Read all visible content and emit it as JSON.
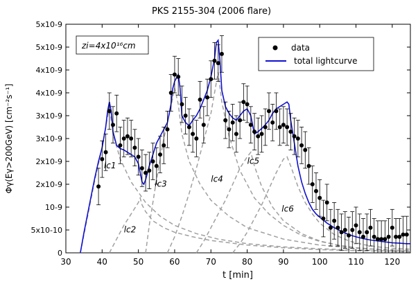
{
  "chart_data": {
    "type": "scatter",
    "title": "PKS 2155-304  (2006 flare)",
    "xlabel": "t [min]",
    "ylabel": "Φγ(Eγ>200GeV) [cm⁻²s⁻¹]",
    "xlim": [
      30,
      125
    ],
    "ylim": [
      0,
      5e-09
    ],
    "x_ticks": [
      30,
      40,
      50,
      60,
      70,
      80,
      90,
      100,
      110,
      120
    ],
    "y_ticks": [
      {
        "value": 0,
        "label": "0"
      },
      {
        "value": 5e-10,
        "label": "5x10-10"
      },
      {
        "value": 1e-09,
        "label": "10-9"
      },
      {
        "value": 1.5e-09,
        "label": "2x10-9"
      },
      {
        "value": 2e-09,
        "label": "2x10-9"
      },
      {
        "value": 2.5e-09,
        "label": "3x10-9"
      },
      {
        "value": 3e-09,
        "label": "3x10-9"
      },
      {
        "value": 3.5e-09,
        "label": "4x10-9"
      },
      {
        "value": 4e-09,
        "label": "4x10-9"
      },
      {
        "value": 4.5e-09,
        "label": "5x10-9"
      },
      {
        "value": 5e-09,
        "label": "5x10-9"
      }
    ],
    "grid": false,
    "legend_position": "top-right",
    "annotation_box": "zi=4x10¹⁶cm",
    "colors": {
      "data": "#000000",
      "total": "#1010d0",
      "components": "#a0a0a0"
    },
    "series": [
      {
        "name": "data",
        "kind": "points",
        "x": [
          39,
          40,
          41,
          42,
          43,
          44,
          45,
          46,
          47,
          48,
          49,
          50,
          51,
          52,
          53,
          54,
          55,
          56,
          57,
          58,
          59,
          60,
          61,
          62,
          63,
          64,
          65,
          66,
          67,
          68,
          69,
          70,
          71,
          72,
          73,
          74,
          75,
          76,
          77,
          78,
          79,
          80,
          81,
          82,
          83,
          84,
          85,
          86,
          87,
          88,
          89,
          90,
          91,
          92,
          93,
          94,
          95,
          96,
          97,
          98,
          99,
          100,
          101,
          102,
          103,
          104,
          105,
          106,
          107,
          108,
          109,
          110,
          111,
          112,
          113,
          114,
          115,
          116,
          117,
          118,
          119,
          120,
          121,
          122,
          123,
          124
        ],
        "y": [
          1.45e-09,
          2.05e-09,
          2.2e-09,
          3.1e-09,
          2.8e-09,
          3.05e-09,
          2.35e-09,
          2.5e-09,
          2.55e-09,
          2.5e-09,
          2.3e-09,
          2.1e-09,
          1.85e-09,
          1.75e-09,
          1.8e-09,
          2e-09,
          1.9e-09,
          2.15e-09,
          2.35e-09,
          2.7e-09,
          3.5e-09,
          3.9e-09,
          3.85e-09,
          3.25e-09,
          3e-09,
          2.75e-09,
          2.6e-09,
          2.5e-09,
          3.35e-09,
          2.8e-09,
          3.4e-09,
          3.8e-09,
          4.2e-09,
          4.15e-09,
          4.35e-09,
          2.9e-09,
          2.7e-09,
          2.85e-09,
          2.6e-09,
          2.9e-09,
          3.3e-09,
          3.25e-09,
          2.8e-09,
          2.65e-09,
          2.55e-09,
          2.6e-09,
          2.75e-09,
          3.1e-09,
          2.85e-09,
          3.1e-09,
          2.75e-09,
          2.8e-09,
          2.75e-09,
          2.65e-09,
          2.55e-09,
          2.5e-09,
          2.35e-09,
          2.25e-09,
          1.9e-09,
          1.5e-09,
          1.35e-09,
          1.2e-09,
          7.5e-10,
          1.1e-09,
          5.5e-10,
          7e-10,
          5.5e-10,
          4.5e-10,
          5e-10,
          3.8e-10,
          5e-10,
          6e-10,
          4.5e-10,
          3.5e-10,
          4.5e-10,
          5.5e-10,
          3.5e-10,
          3e-10,
          3e-10,
          3e-10,
          3.5e-10,
          5.5e-10,
          3.5e-10,
          3.5e-10,
          4e-10,
          4e-10
        ],
        "error": 4e-10
      },
      {
        "name": "total lightcurve",
        "kind": "line",
        "x": [
          34,
          35,
          36,
          37,
          38,
          39,
          40,
          41,
          41.5,
          42,
          42.5,
          43,
          44,
          45,
          46,
          47,
          48,
          49,
          50,
          51,
          51.5,
          52,
          53,
          54,
          55,
          56,
          57,
          58,
          59,
          59.5,
          60,
          61,
          61.5,
          62,
          63,
          64,
          65,
          66,
          67,
          68,
          69,
          70,
          71,
          71.5,
          72,
          72.5,
          73,
          74,
          75,
          76,
          77,
          78,
          79,
          80,
          81,
          81.5,
          82,
          83,
          84,
          85,
          86,
          87,
          88,
          89,
          90,
          91,
          91.5,
          92,
          93,
          94,
          95,
          96,
          97,
          98,
          99,
          100,
          102,
          104,
          106,
          108,
          110,
          112,
          114,
          116,
          118,
          120,
          122,
          124,
          125
        ],
        "y": [
          0.0,
          4.5e-10,
          8.5e-10,
          1.25e-09,
          1.65e-09,
          2e-09,
          2.3e-09,
          2.75e-09,
          3.1e-09,
          3.3e-09,
          3.1e-09,
          2.65e-09,
          2.35e-09,
          2.28e-09,
          2.25e-09,
          2.2e-09,
          2.15e-09,
          2.1e-09,
          1.95e-09,
          1.55e-09,
          1.5e-09,
          1.6e-09,
          1.9e-09,
          2.15e-09,
          2.4e-09,
          2.55e-09,
          2.7e-09,
          2.85e-09,
          3.25e-09,
          3.6e-09,
          3.75e-09,
          3.9e-09,
          3.6e-09,
          3e-09,
          2.85e-09,
          2.78e-09,
          2.9e-09,
          3e-09,
          3.15e-09,
          3.35e-09,
          3.55e-09,
          3.85e-09,
          4.25e-09,
          4.6e-09,
          4.65e-09,
          4.2e-09,
          3.55e-09,
          3.2e-09,
          3.05e-09,
          2.95e-09,
          2.9e-09,
          3e-09,
          3.1e-09,
          3.15e-09,
          3e-09,
          2.8e-09,
          2.6e-09,
          2.65e-09,
          2.72e-09,
          2.8e-09,
          2.9e-09,
          3.05e-09,
          3.15e-09,
          3.2e-09,
          3.25e-09,
          3.3e-09,
          3.25e-09,
          2.9e-09,
          2.4e-09,
          1.9e-09,
          1.55e-09,
          1.3e-09,
          1.1e-09,
          9.5e-10,
          8.5e-10,
          7.8e-10,
          6.5e-10,
          5.5e-10,
          4.7e-10,
          4e-10,
          3.5e-10,
          3.1e-10,
          2.8e-10,
          2.6e-10,
          2.4e-10,
          2.2e-10,
          2.1e-10,
          2e-10,
          2e-10
        ]
      },
      {
        "name": "lc1",
        "kind": "component",
        "x": [
          34,
          36,
          38,
          40,
          41,
          42,
          43,
          45,
          48,
          52,
          56,
          60,
          66,
          72,
          80,
          90,
          100,
          110,
          120,
          125
        ],
        "y": [
          0.0,
          8e-10,
          1.6e-09,
          2.3e-09,
          2.75e-09,
          3.2e-09,
          2.6e-09,
          2.05e-09,
          1.55e-09,
          1.1e-09,
          8e-10,
          6e-10,
          4.2e-10,
          3e-10,
          2e-10,
          1.3e-10,
          9e-11,
          6e-11,
          4e-11,
          3e-11
        ]
      },
      {
        "name": "lc2",
        "kind": "component",
        "x": [
          42,
          44,
          46,
          48,
          50,
          50.5,
          51,
          52,
          54,
          57,
          60,
          65,
          70,
          80,
          90,
          100,
          110,
          120,
          125
        ],
        "y": [
          0.0,
          3e-10,
          6e-10,
          8.5e-10,
          1.1e-09,
          1.2e-09,
          1.05e-09,
          9e-10,
          7e-10,
          5.5e-10,
          4.5e-10,
          3.5e-10,
          2.7e-10,
          1.7e-10,
          1.1e-10,
          7e-11,
          5e-11,
          3e-11,
          2e-11
        ]
      },
      {
        "name": "lc3",
        "kind": "component",
        "x": [
          52,
          53,
          55,
          57,
          59,
          60,
          61,
          62,
          64,
          67,
          70,
          75,
          80,
          90,
          100,
          110,
          120,
          125
        ],
        "y": [
          0.0,
          6e-10,
          1.6e-09,
          2.5e-09,
          3.2e-09,
          3.6e-09,
          3.25e-09,
          2.6e-09,
          2e-09,
          1.5e-09,
          1.15e-09,
          8e-10,
          5.5e-10,
          3e-10,
          1.7e-10,
          1e-10,
          6e-11,
          5e-11
        ]
      },
      {
        "name": "lc4",
        "kind": "component",
        "x": [
          58,
          60,
          62,
          64,
          66,
          68,
          70,
          71,
          72,
          73,
          75,
          78,
          82,
          86,
          90,
          95,
          100,
          105,
          110,
          115,
          120,
          125
        ],
        "y": [
          0.0,
          3.5e-10,
          8e-10,
          1.3e-09,
          1.85e-09,
          2.45e-09,
          3.05e-09,
          3.5e-09,
          3.95e-09,
          3.3e-09,
          2.55e-09,
          1.8e-09,
          1.2e-09,
          8.5e-10,
          6e-10,
          3.8e-10,
          2.5e-10,
          1.7e-10,
          1.1e-10,
          8e-11,
          6e-11,
          5e-11
        ]
      },
      {
        "name": "lc5",
        "kind": "component",
        "x": [
          66,
          68,
          70,
          72,
          74,
          76,
          78,
          80,
          81,
          82,
          84,
          87,
          90,
          95,
          100,
          105,
          110,
          115,
          120,
          125
        ],
        "y": [
          0.0,
          2.5e-10,
          5.5e-10,
          8.5e-10,
          1.15e-09,
          1.5e-09,
          1.85e-09,
          2.1e-09,
          2.2e-09,
          1.9e-09,
          1.45e-09,
          1e-09,
          7e-10,
          4.2e-10,
          2.6e-10,
          1.7e-10,
          1.1e-10,
          8e-11,
          6e-11,
          5e-11
        ]
      },
      {
        "name": "lc6",
        "kind": "component",
        "x": [
          76,
          78,
          80,
          82,
          84,
          86,
          88,
          90,
          91,
          92,
          94,
          96,
          98,
          100,
          104,
          108,
          112,
          116,
          120,
          125
        ],
        "y": [
          0.0,
          2e-10,
          4.5e-10,
          7.5e-10,
          1.05e-09,
          1.4e-09,
          1.75e-09,
          2.05e-09,
          2.1e-09,
          1.9e-09,
          1.45e-09,
          1.1e-09,
          8.5e-10,
          6.5e-10,
          4e-10,
          2.6e-10,
          1.8e-10,
          1.3e-10,
          1e-10,
          8e-11
        ]
      }
    ],
    "component_labels": [
      {
        "text": "lc1",
        "x": 40.5,
        "y": 1.85e-09
      },
      {
        "text": "lc2",
        "x": 46,
        "y": 4.5e-10
      },
      {
        "text": "lc3",
        "x": 54.5,
        "y": 1.45e-09
      },
      {
        "text": "lc4",
        "x": 70,
        "y": 1.55e-09
      },
      {
        "text": "lc5",
        "x": 80,
        "y": 1.95e-09
      },
      {
        "text": "lc6",
        "x": 89.5,
        "y": 9e-10
      }
    ]
  }
}
